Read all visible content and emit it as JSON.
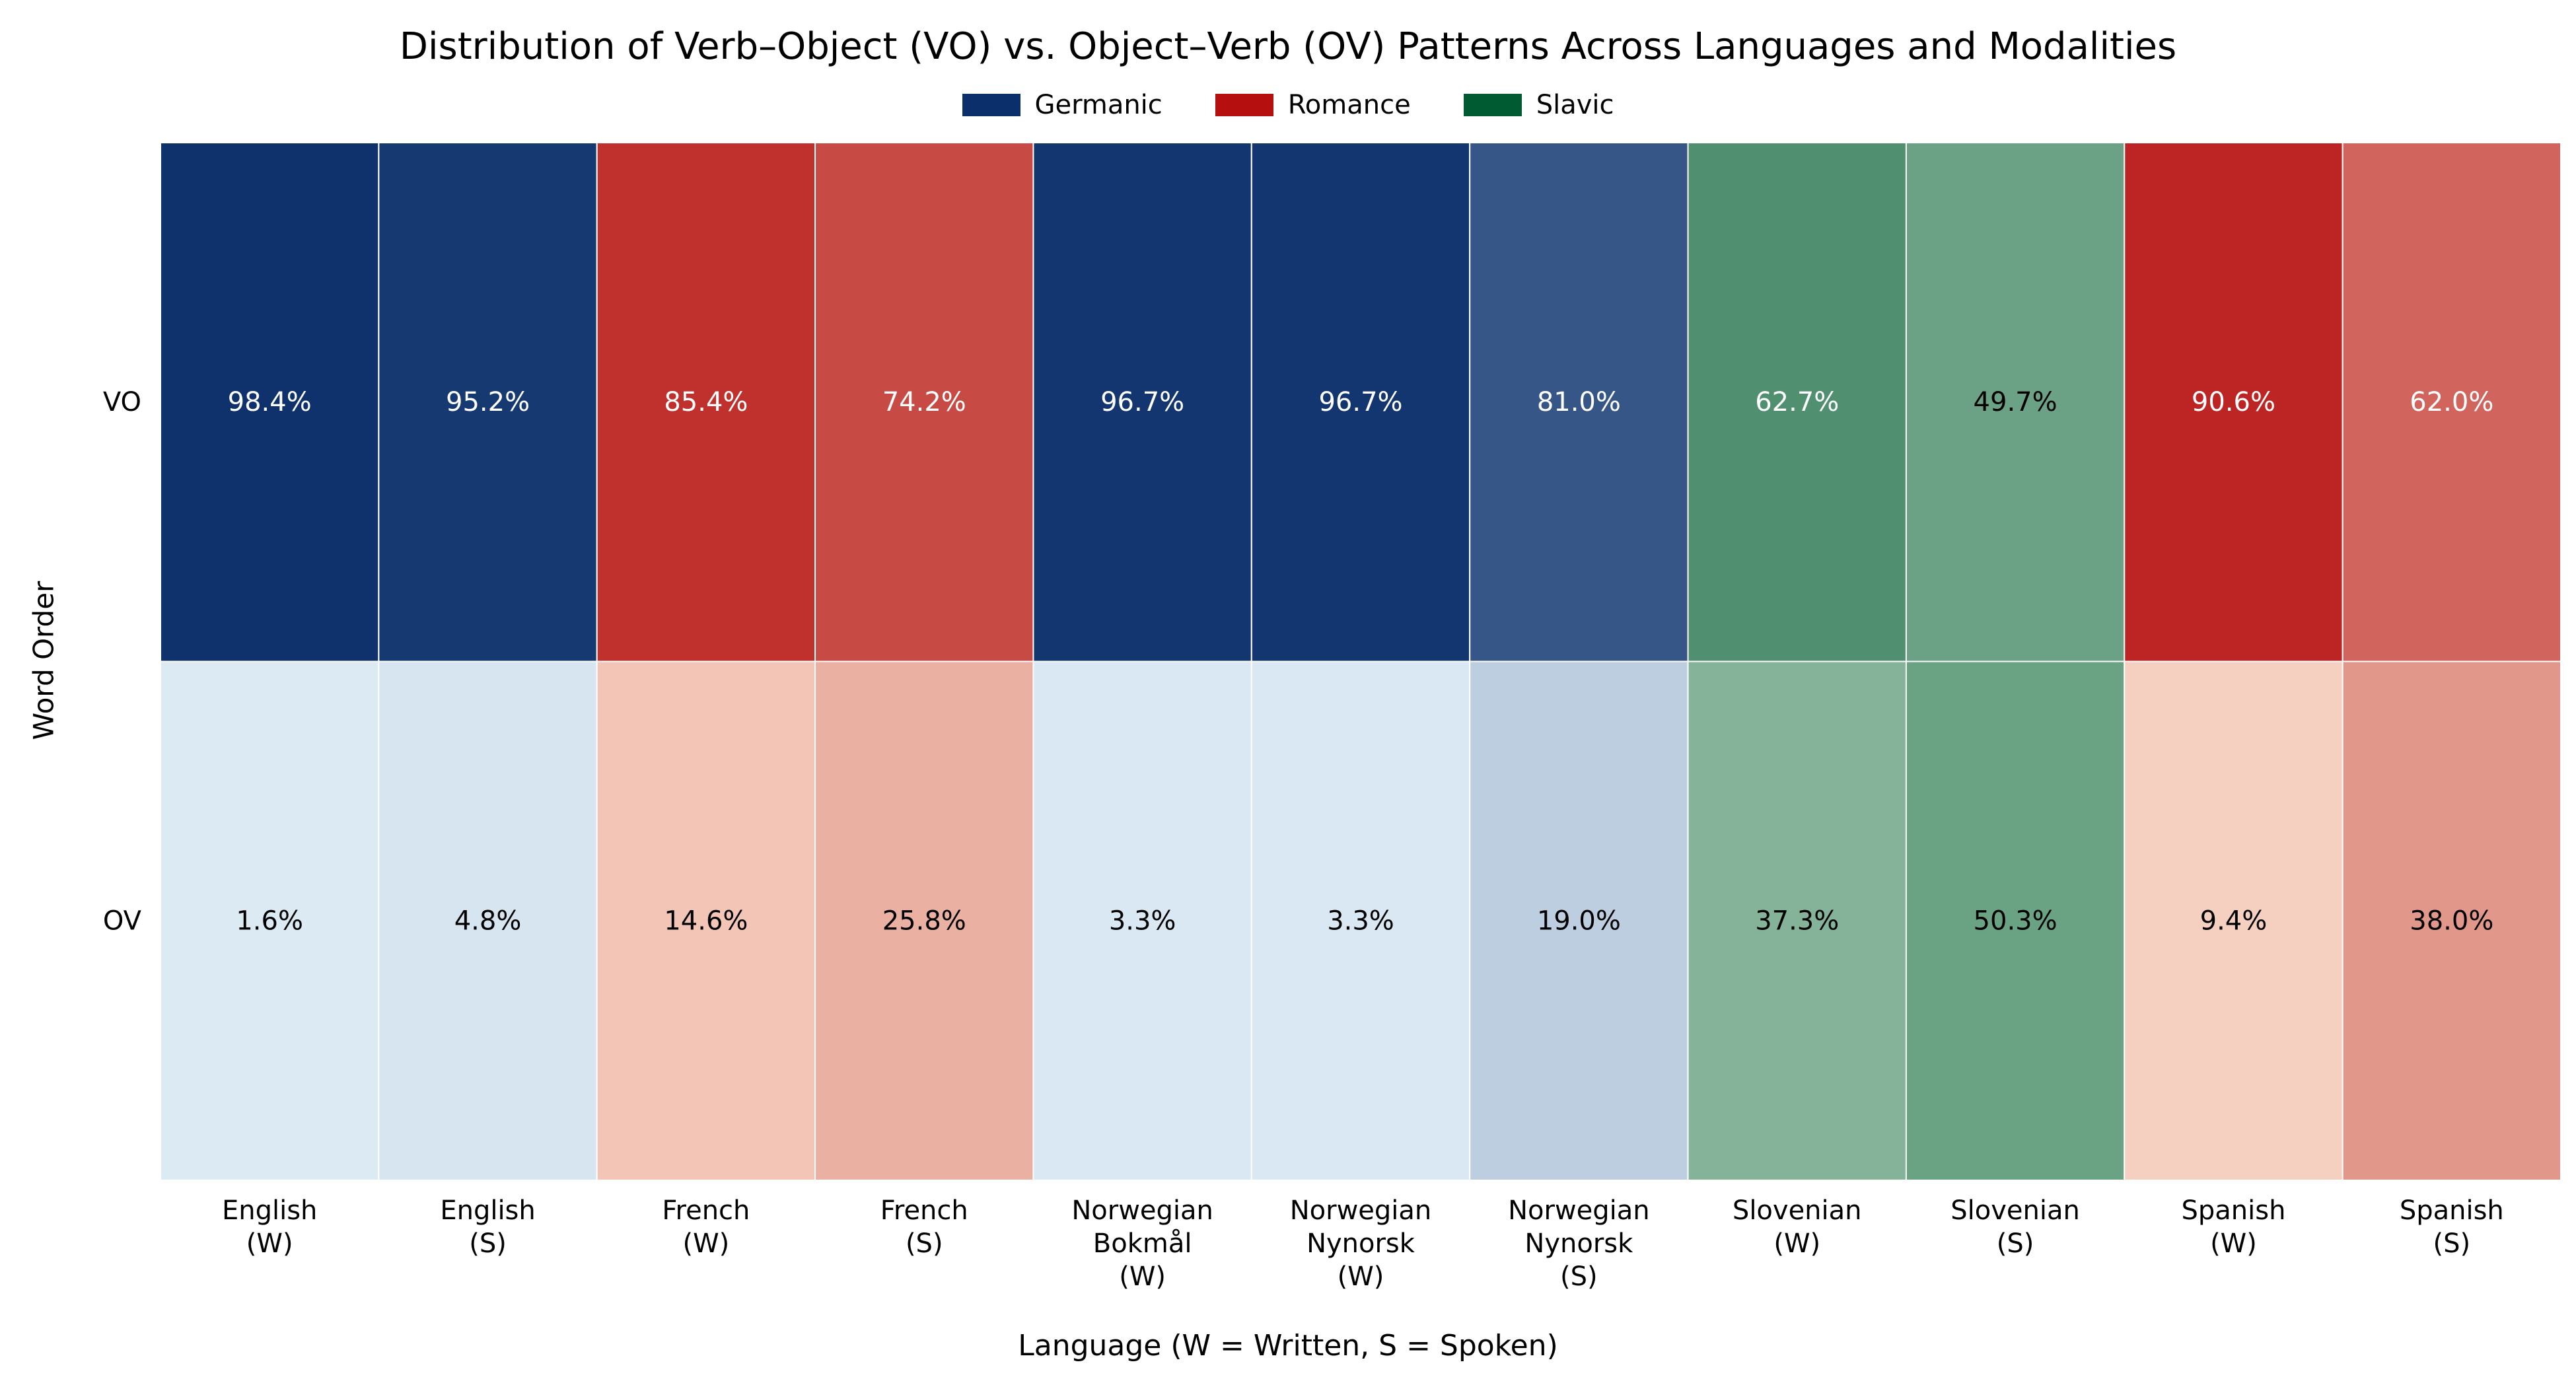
{
  "chart_data": {
    "type": "heatmap",
    "title": "Distribution of Verb–Object (VO) vs. Object–Verb (OV) Patterns Across Languages and Modalities",
    "xlabel": "Language (W = Written, S = Spoken)",
    "ylabel": "Word Order",
    "rows": [
      "VO",
      "OV"
    ],
    "categories": [
      {
        "label": [
          "English",
          "(W)"
        ],
        "family": "Germanic",
        "values": [
          98.4,
          1.6
        ]
      },
      {
        "label": [
          "English",
          "(S)"
        ],
        "family": "Germanic",
        "values": [
          95.2,
          4.8
        ]
      },
      {
        "label": [
          "French",
          "(W)"
        ],
        "family": "Romance",
        "values": [
          85.4,
          14.6
        ]
      },
      {
        "label": [
          "French",
          "(S)"
        ],
        "family": "Romance",
        "values": [
          74.2,
          25.8
        ]
      },
      {
        "label": [
          "Norwegian",
          "Bokmål",
          "(W)"
        ],
        "family": "Germanic",
        "values": [
          96.7,
          3.3
        ]
      },
      {
        "label": [
          "Norwegian",
          "Nynorsk",
          "(W)"
        ],
        "family": "Germanic",
        "values": [
          96.7,
          3.3
        ]
      },
      {
        "label": [
          "Norwegian",
          "Nynorsk",
          "(S)"
        ],
        "family": "Germanic",
        "values": [
          81.0,
          19.0
        ]
      },
      {
        "label": [
          "Slovenian",
          "(W)"
        ],
        "family": "Slavic",
        "values": [
          62.7,
          37.3
        ]
      },
      {
        "label": [
          "Slovenian",
          "(S)"
        ],
        "family": "Slavic",
        "values": [
          49.7,
          50.3
        ]
      },
      {
        "label": [
          "Spanish",
          "(W)"
        ],
        "family": "Romance",
        "values": [
          90.6,
          9.4
        ]
      },
      {
        "label": [
          "Spanish",
          "(S)"
        ],
        "family": "Romance",
        "values": [
          62.0,
          38.0
        ]
      }
    ],
    "value_format": "percent_1dp",
    "legend": {
      "placement": "top-center",
      "entries": [
        {
          "name": "Germanic",
          "color": "#0b2f6b"
        },
        {
          "name": "Romance",
          "color": "#b5100f"
        },
        {
          "name": "Slavic",
          "color": "#005a32"
        }
      ]
    },
    "family_colors": {
      "Germanic": "#0b2f6b",
      "Romance": "#b5100f",
      "Slavic": "#005a32"
    },
    "grid": false
  }
}
